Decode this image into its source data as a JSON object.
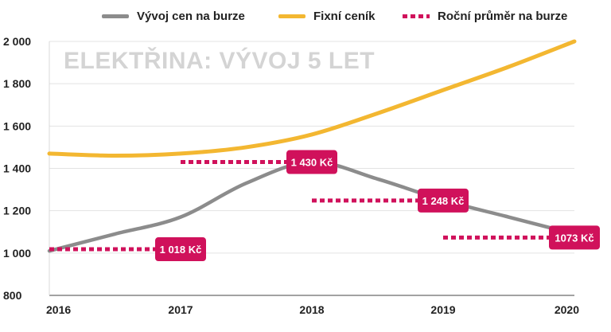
{
  "chart_data": {
    "type": "line",
    "title": "ELEKTŘINA: VÝVOJ 5 LET",
    "x": [
      2016,
      2017,
      2018,
      2019,
      2020
    ],
    "x_tick_labels": [
      "2016",
      "2017",
      "2018",
      "2019",
      "2020"
    ],
    "ylim": [
      800,
      2000
    ],
    "y_ticks": [
      800,
      1000,
      1200,
      1400,
      1600,
      1800,
      2000
    ],
    "y_tick_labels": [
      "800",
      "1 000",
      "1 200",
      "1 400",
      "1 600",
      "1 800",
      "2 000"
    ],
    "grid": "horizontal",
    "legend_position": "top",
    "series": [
      {
        "name": "Vývoj cen na burze",
        "color": "#8c8c8c",
        "style": "line",
        "x": [
          2016,
          2016.5,
          2017,
          2017.5,
          2018,
          2018.5,
          2019,
          2019.5,
          2020
        ],
        "values": [
          1010,
          1090,
          1170,
          1330,
          1430,
          1350,
          1250,
          1170,
          1090
        ]
      },
      {
        "name": "Fixní ceník",
        "color": "#f3b731",
        "style": "line",
        "x": [
          2016,
          2016.5,
          2017,
          2017.5,
          2018,
          2018.5,
          2019,
          2019.5,
          2020
        ],
        "values": [
          1470,
          1460,
          1470,
          1500,
          1560,
          1660,
          1770,
          1880,
          2000
        ]
      },
      {
        "name": "Roční průměr na burze",
        "color": "#d0115b",
        "style": "dotted-segments",
        "segments": [
          {
            "x_start": 2016,
            "x_end": 2017,
            "value": 1018,
            "label": "1 018 Kč"
          },
          {
            "x_start": 2017,
            "x_end": 2018,
            "value": 1430,
            "label": "1 430 Kč"
          },
          {
            "x_start": 2018,
            "x_end": 2019,
            "value": 1248,
            "label": "1 248 Kč"
          },
          {
            "x_start": 2019,
            "x_end": 2020,
            "value": 1073,
            "label": "1073 Kč"
          }
        ]
      }
    ]
  }
}
